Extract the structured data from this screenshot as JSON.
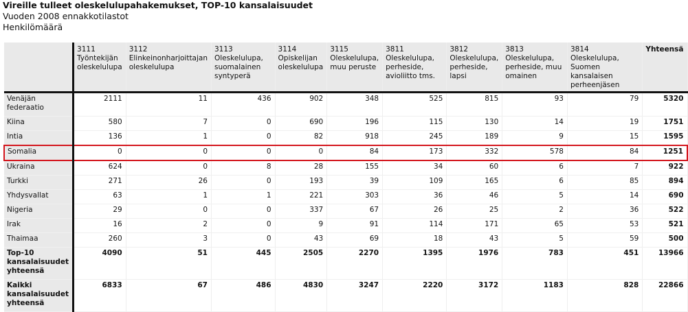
{
  "title": "Vireille tulleet oleskelulupahakemukset, TOP-10 kansalaisuudet",
  "subtitle": "Vuoden 2008 ennakkotilastot",
  "unit": "Henkilömäärä",
  "highlight_color": "#d4141c",
  "table": {
    "columns": [
      "3111\nTyöntekijän\noleskelulupa",
      "3112\nElinkeinonharjoittajan\noleskelulupa",
      "3113\nOleskelulupa,\nsuomalainen\nsyntyperä",
      "3114\nOpiskelijan\noleskelulupa",
      "3115\nOleskelulupa,\nmuu peruste",
      "3811\nOleskelulupa,\nperheside,\navioliitto tms.",
      "3812\nOleskelulupa,\nperheside,\nlapsi",
      "3813\nOleskelulupa,\nperheside, muu\nomainen",
      "3814 Oleskelulupa,\nSuomen kansalaisen\nperheenjäsen",
      "Yhteensä"
    ],
    "rows": [
      {
        "label": "Venäjän federaatio",
        "values": [
          "2111",
          "11",
          "436",
          "902",
          "348",
          "525",
          "815",
          "93",
          "79",
          "5320"
        ]
      },
      {
        "label": "Kiina",
        "values": [
          "580",
          "7",
          "0",
          "690",
          "196",
          "115",
          "130",
          "14",
          "19",
          "1751"
        ]
      },
      {
        "label": "Intia",
        "values": [
          "136",
          "1",
          "0",
          "82",
          "918",
          "245",
          "189",
          "9",
          "15",
          "1595"
        ]
      },
      {
        "label": "Somalia",
        "highlighted": true,
        "values": [
          "0",
          "0",
          "0",
          "0",
          "84",
          "173",
          "332",
          "578",
          "84",
          "1251"
        ]
      },
      {
        "label": "Ukraina",
        "values": [
          "624",
          "0",
          "8",
          "28",
          "155",
          "34",
          "60",
          "6",
          "7",
          "922"
        ]
      },
      {
        "label": "Turkki",
        "values": [
          "271",
          "26",
          "0",
          "193",
          "39",
          "109",
          "165",
          "6",
          "85",
          "894"
        ]
      },
      {
        "label": "Yhdysvallat",
        "values": [
          "63",
          "1",
          "1",
          "221",
          "303",
          "36",
          "46",
          "5",
          "14",
          "690"
        ]
      },
      {
        "label": "Nigeria",
        "values": [
          "29",
          "0",
          "0",
          "337",
          "67",
          "26",
          "25",
          "2",
          "36",
          "522"
        ]
      },
      {
        "label": "Irak",
        "values": [
          "16",
          "2",
          "0",
          "9",
          "91",
          "114",
          "171",
          "65",
          "53",
          "521"
        ]
      },
      {
        "label": "Thaimaa",
        "values": [
          "260",
          "3",
          "0",
          "43",
          "69",
          "18",
          "43",
          "5",
          "59",
          "500"
        ]
      },
      {
        "label": "Top-10 kansalaisuudet yhteensä",
        "total": true,
        "values": [
          "4090",
          "51",
          "445",
          "2505",
          "2270",
          "1395",
          "1976",
          "783",
          "451",
          "13966"
        ]
      },
      {
        "label": "Kaikki kansalaisuudet yhteensä",
        "total": true,
        "values": [
          "6833",
          "67",
          "486",
          "4830",
          "3247",
          "2220",
          "3172",
          "1183",
          "828",
          "22866"
        ]
      }
    ]
  }
}
